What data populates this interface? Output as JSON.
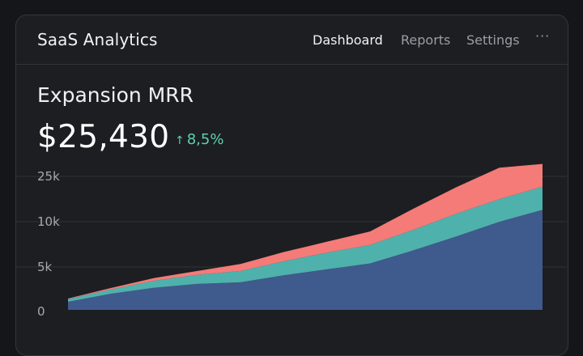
{
  "header": {
    "app_title": "SaaS Analytics",
    "nav": [
      "Dashboard",
      "Reports",
      "Settings"
    ],
    "more_label": "···",
    "more_icon": "more-horizontal-icon"
  },
  "metric": {
    "label": "Expansion MRR",
    "value": "$25,430",
    "delta": "8,5%",
    "delta_icon": "arrow-up-icon"
  },
  "colors": {
    "series_1": "#3f5a8c",
    "series_2": "#4fb1ac",
    "series_3": "#f47b78",
    "delta": "#5fd0b1"
  },
  "chart_data": {
    "type": "area",
    "stacked": true,
    "y_tick_labels": [
      "25k",
      "10k",
      "5k",
      "0"
    ],
    "x": [
      0,
      1,
      2,
      3,
      4,
      5,
      6,
      7,
      8,
      9,
      10,
      11
    ],
    "series": [
      {
        "values": [
          1500,
          3000,
          4100,
          4800,
          5100,
          6400,
          7500,
          8600,
          11000,
          13600,
          16300,
          18500
        ]
      },
      {
        "values": [
          500,
          800,
          1300,
          1700,
          2100,
          2600,
          3100,
          3400,
          3800,
          4200,
          4200,
          4300
        ]
      },
      {
        "values": [
          100,
          250,
          500,
          700,
          1300,
          1700,
          2000,
          2500,
          3900,
          4900,
          5800,
          4200
        ]
      }
    ],
    "grid": true
  }
}
